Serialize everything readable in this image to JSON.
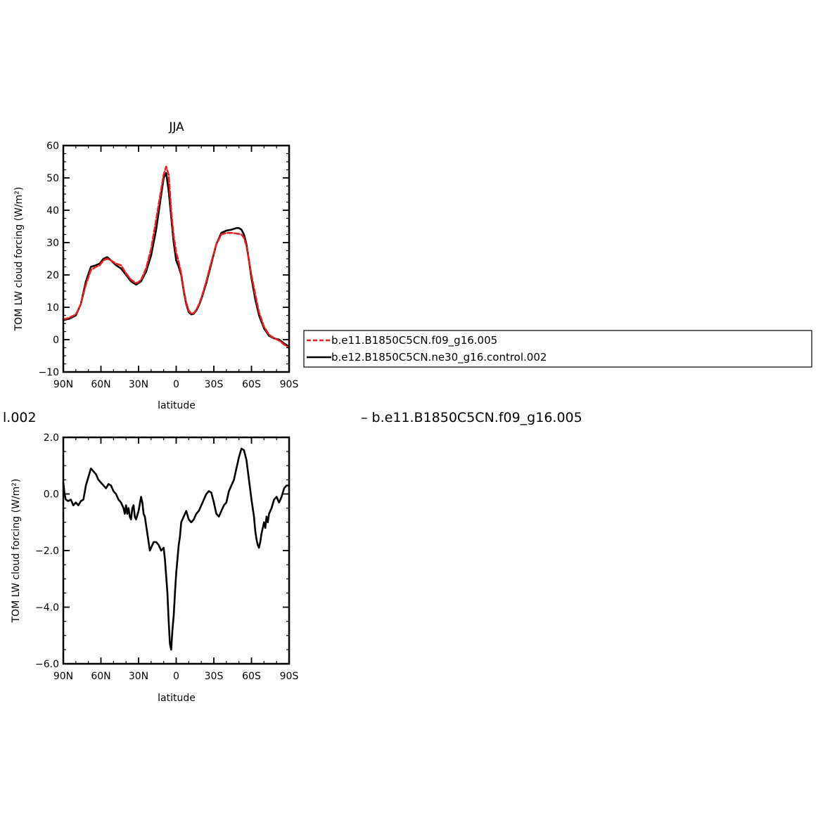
{
  "top_fragment_left": "l.002",
  "top_fragment_right": "– b.e11.B1850C5CN.f09_g16.005",
  "legend": {
    "items": [
      {
        "label": "b.e11.B1850C5CN.f09_g16.005",
        "color": "#e8201e",
        "dash": true
      },
      {
        "label": "b.e12.B1850C5CN.ne30_g16.control.002",
        "color": "#000000",
        "dash": false
      }
    ]
  },
  "chart_data": [
    {
      "type": "line",
      "title": "JJA",
      "xlabel": "latitude",
      "ylabel": "TOM LW cloud forcing (W/m²)",
      "xlim": [
        90,
        -90
      ],
      "ylim": [
        -10,
        60
      ],
      "x_ticks": [
        {
          "value": 90,
          "label": "90N"
        },
        {
          "value": 60,
          "label": "60N"
        },
        {
          "value": 30,
          "label": "30N"
        },
        {
          "value": 0,
          "label": "0"
        },
        {
          "value": -30,
          "label": "30S"
        },
        {
          "value": -60,
          "label": "60S"
        },
        {
          "value": -90,
          "label": "90S"
        }
      ],
      "y_ticks": [
        {
          "value": 60,
          "label": "60"
        },
        {
          "value": 50,
          "label": "50"
        },
        {
          "value": 40,
          "label": "40"
        },
        {
          "value": 30,
          "label": "30"
        },
        {
          "value": 20,
          "label": "20"
        },
        {
          "value": 10,
          "label": "10"
        },
        {
          "value": 0,
          "label": "0"
        },
        {
          "value": -10,
          "label": "−10"
        }
      ],
      "series": [
        {
          "name": "b.e12.B1850C5CN.ne30_g16.control.002",
          "color": "#000000",
          "dash": false,
          "x": [
            90,
            85,
            80,
            76,
            72,
            68,
            64,
            61,
            58,
            55,
            52,
            48,
            44,
            40,
            36,
            32,
            30,
            28,
            24,
            20,
            16,
            13,
            10,
            8,
            6,
            4,
            2,
            0,
            -2,
            -4,
            -6,
            -8,
            -10,
            -12,
            -14,
            -16,
            -18,
            -20,
            -24,
            -28,
            -32,
            -36,
            -40,
            -44,
            -48,
            -50,
            -52,
            -54,
            -56,
            -58,
            -60,
            -63,
            -66,
            -70,
            -74,
            -78,
            -82,
            -86,
            -90
          ],
          "y": [
            6,
            6.5,
            7.5,
            11,
            18,
            22.5,
            23,
            23.5,
            25,
            25.5,
            24.5,
            23,
            22,
            20,
            18,
            17,
            17.5,
            18,
            21,
            26,
            34,
            42,
            50,
            51.5,
            46,
            38,
            30,
            24.5,
            22.5,
            20,
            15,
            11,
            8.5,
            7.8,
            8,
            9,
            10.5,
            12.5,
            17.5,
            23.5,
            29.5,
            33,
            33.7,
            34,
            34.5,
            34.5,
            34,
            32.5,
            29.5,
            24.5,
            19,
            12.5,
            7.5,
            3.5,
            1.2,
            0.4,
            0,
            -1.2,
            -2.2
          ]
        },
        {
          "name": "b.e11.B1850C5CN.f09_g16.005",
          "color": "#e8201e",
          "dash": true,
          "x": [
            90,
            85,
            80,
            76,
            72,
            68,
            64,
            61,
            58,
            55,
            52,
            48,
            44,
            40,
            36,
            32,
            30,
            28,
            24,
            20,
            16,
            13,
            10,
            8,
            6,
            4,
            2,
            0,
            -2,
            -4,
            -6,
            -8,
            -10,
            -12,
            -14,
            -16,
            -18,
            -20,
            -24,
            -28,
            -32,
            -36,
            -40,
            -44,
            -48,
            -50,
            -52,
            -54,
            -56,
            -58,
            -60,
            -63,
            -66,
            -70,
            -74,
            -78,
            -82,
            -86,
            -90
          ],
          "y": [
            6.2,
            6.8,
            7.8,
            11,
            17,
            21.5,
            22.5,
            23,
            24.5,
            25,
            24.5,
            23.5,
            23,
            20.5,
            18.5,
            17.5,
            17.8,
            18.5,
            22,
            28,
            37,
            44,
            51,
            53.5,
            51,
            40,
            32,
            27,
            24,
            20.5,
            15.5,
            11.5,
            9,
            8,
            8.2,
            9.2,
            10.8,
            12.8,
            18,
            24,
            29.5,
            32.5,
            33,
            33,
            32.8,
            32.7,
            32.5,
            31.5,
            29,
            24.5,
            20,
            14,
            8.5,
            4,
            1.5,
            0.5,
            -0.3,
            -1.5,
            -2.5
          ]
        }
      ]
    },
    {
      "type": "line",
      "title": "",
      "xlabel": "latitude",
      "ylabel": "TOM LW cloud forcing (W/m²)",
      "xlim": [
        90,
        -90
      ],
      "ylim": [
        -6,
        2
      ],
      "x_ticks": [
        {
          "value": 90,
          "label": "90N"
        },
        {
          "value": 60,
          "label": "60N"
        },
        {
          "value": 30,
          "label": "30N"
        },
        {
          "value": 0,
          "label": "0"
        },
        {
          "value": -30,
          "label": "30S"
        },
        {
          "value": -60,
          "label": "60S"
        },
        {
          "value": -90,
          "label": "90S"
        }
      ],
      "y_ticks": [
        {
          "value": 2,
          "label": "2.0"
        },
        {
          "value": 0,
          "label": "0.0"
        },
        {
          "value": -2,
          "label": "−2.0"
        },
        {
          "value": -4,
          "label": "−4.0"
        },
        {
          "value": -6,
          "label": "−6.0"
        }
      ],
      "series": [
        {
          "color": "#000000",
          "dash": false,
          "x": [
            90,
            89,
            88,
            86,
            84,
            82,
            80,
            78,
            76,
            74,
            72,
            70,
            68,
            66,
            64,
            62,
            60,
            58,
            56,
            54,
            52,
            50,
            48,
            46,
            44,
            42,
            41,
            40,
            39,
            38,
            37,
            36,
            35,
            34,
            33,
            32,
            30,
            28,
            27,
            26,
            25,
            24,
            23,
            22,
            21,
            20,
            19,
            18,
            16,
            14,
            12,
            10,
            9,
            8,
            7,
            6,
            5,
            4,
            3,
            2,
            1,
            0,
            -1,
            -2,
            -3,
            -4,
            -6,
            -8,
            -10,
            -12,
            -14,
            -16,
            -18,
            -20,
            -22,
            -24,
            -26,
            -28,
            -30,
            -32,
            -34,
            -36,
            -38,
            -40,
            -42,
            -44,
            -46,
            -48,
            -50,
            -52,
            -54,
            -56,
            -58,
            -60,
            -62,
            -63,
            -64,
            -65,
            -66,
            -67,
            -68,
            -69,
            -70,
            -71,
            -72,
            -73,
            -74,
            -76,
            -78,
            -80,
            -82,
            -84,
            -86,
            -88,
            -90
          ],
          "y": [
            0.4,
            0,
            -0.2,
            -0.25,
            -0.2,
            -0.4,
            -0.3,
            -0.4,
            -0.25,
            -0.2,
            0.3,
            0.6,
            0.9,
            0.8,
            0.7,
            0.5,
            0.4,
            0.3,
            0.2,
            0.35,
            0.3,
            0.1,
            0,
            -0.2,
            -0.3,
            -0.5,
            -0.7,
            -0.4,
            -0.7,
            -0.5,
            -0.8,
            -0.9,
            -0.5,
            -0.4,
            -0.8,
            -0.9,
            -0.6,
            -0.1,
            -0.3,
            -0.7,
            -0.8,
            -1.1,
            -1.4,
            -1.7,
            -2.0,
            -1.9,
            -1.8,
            -1.7,
            -1.7,
            -1.8,
            -2.0,
            -1.9,
            -2.3,
            -2.9,
            -3.5,
            -4.5,
            -5.3,
            -5.5,
            -4.8,
            -4.3,
            -3.5,
            -2.8,
            -2.3,
            -1.8,
            -1.5,
            -1.0,
            -0.8,
            -0.6,
            -0.9,
            -1.0,
            -0.9,
            -0.7,
            -0.6,
            -0.4,
            -0.2,
            0,
            0.1,
            0.05,
            -0.3,
            -0.7,
            -0.8,
            -0.6,
            -0.4,
            -0.3,
            0.1,
            0.3,
            0.5,
            0.9,
            1.3,
            1.6,
            1.55,
            1.2,
            0.5,
            -0.2,
            -0.8,
            -1.3,
            -1.6,
            -1.8,
            -1.9,
            -1.7,
            -1.4,
            -1.2,
            -1.0,
            -1.2,
            -0.8,
            -1.0,
            -0.7,
            -0.5,
            -0.2,
            -0.1,
            -0.3,
            -0.1,
            0.2,
            0.3,
            0.3
          ]
        }
      ]
    }
  ]
}
